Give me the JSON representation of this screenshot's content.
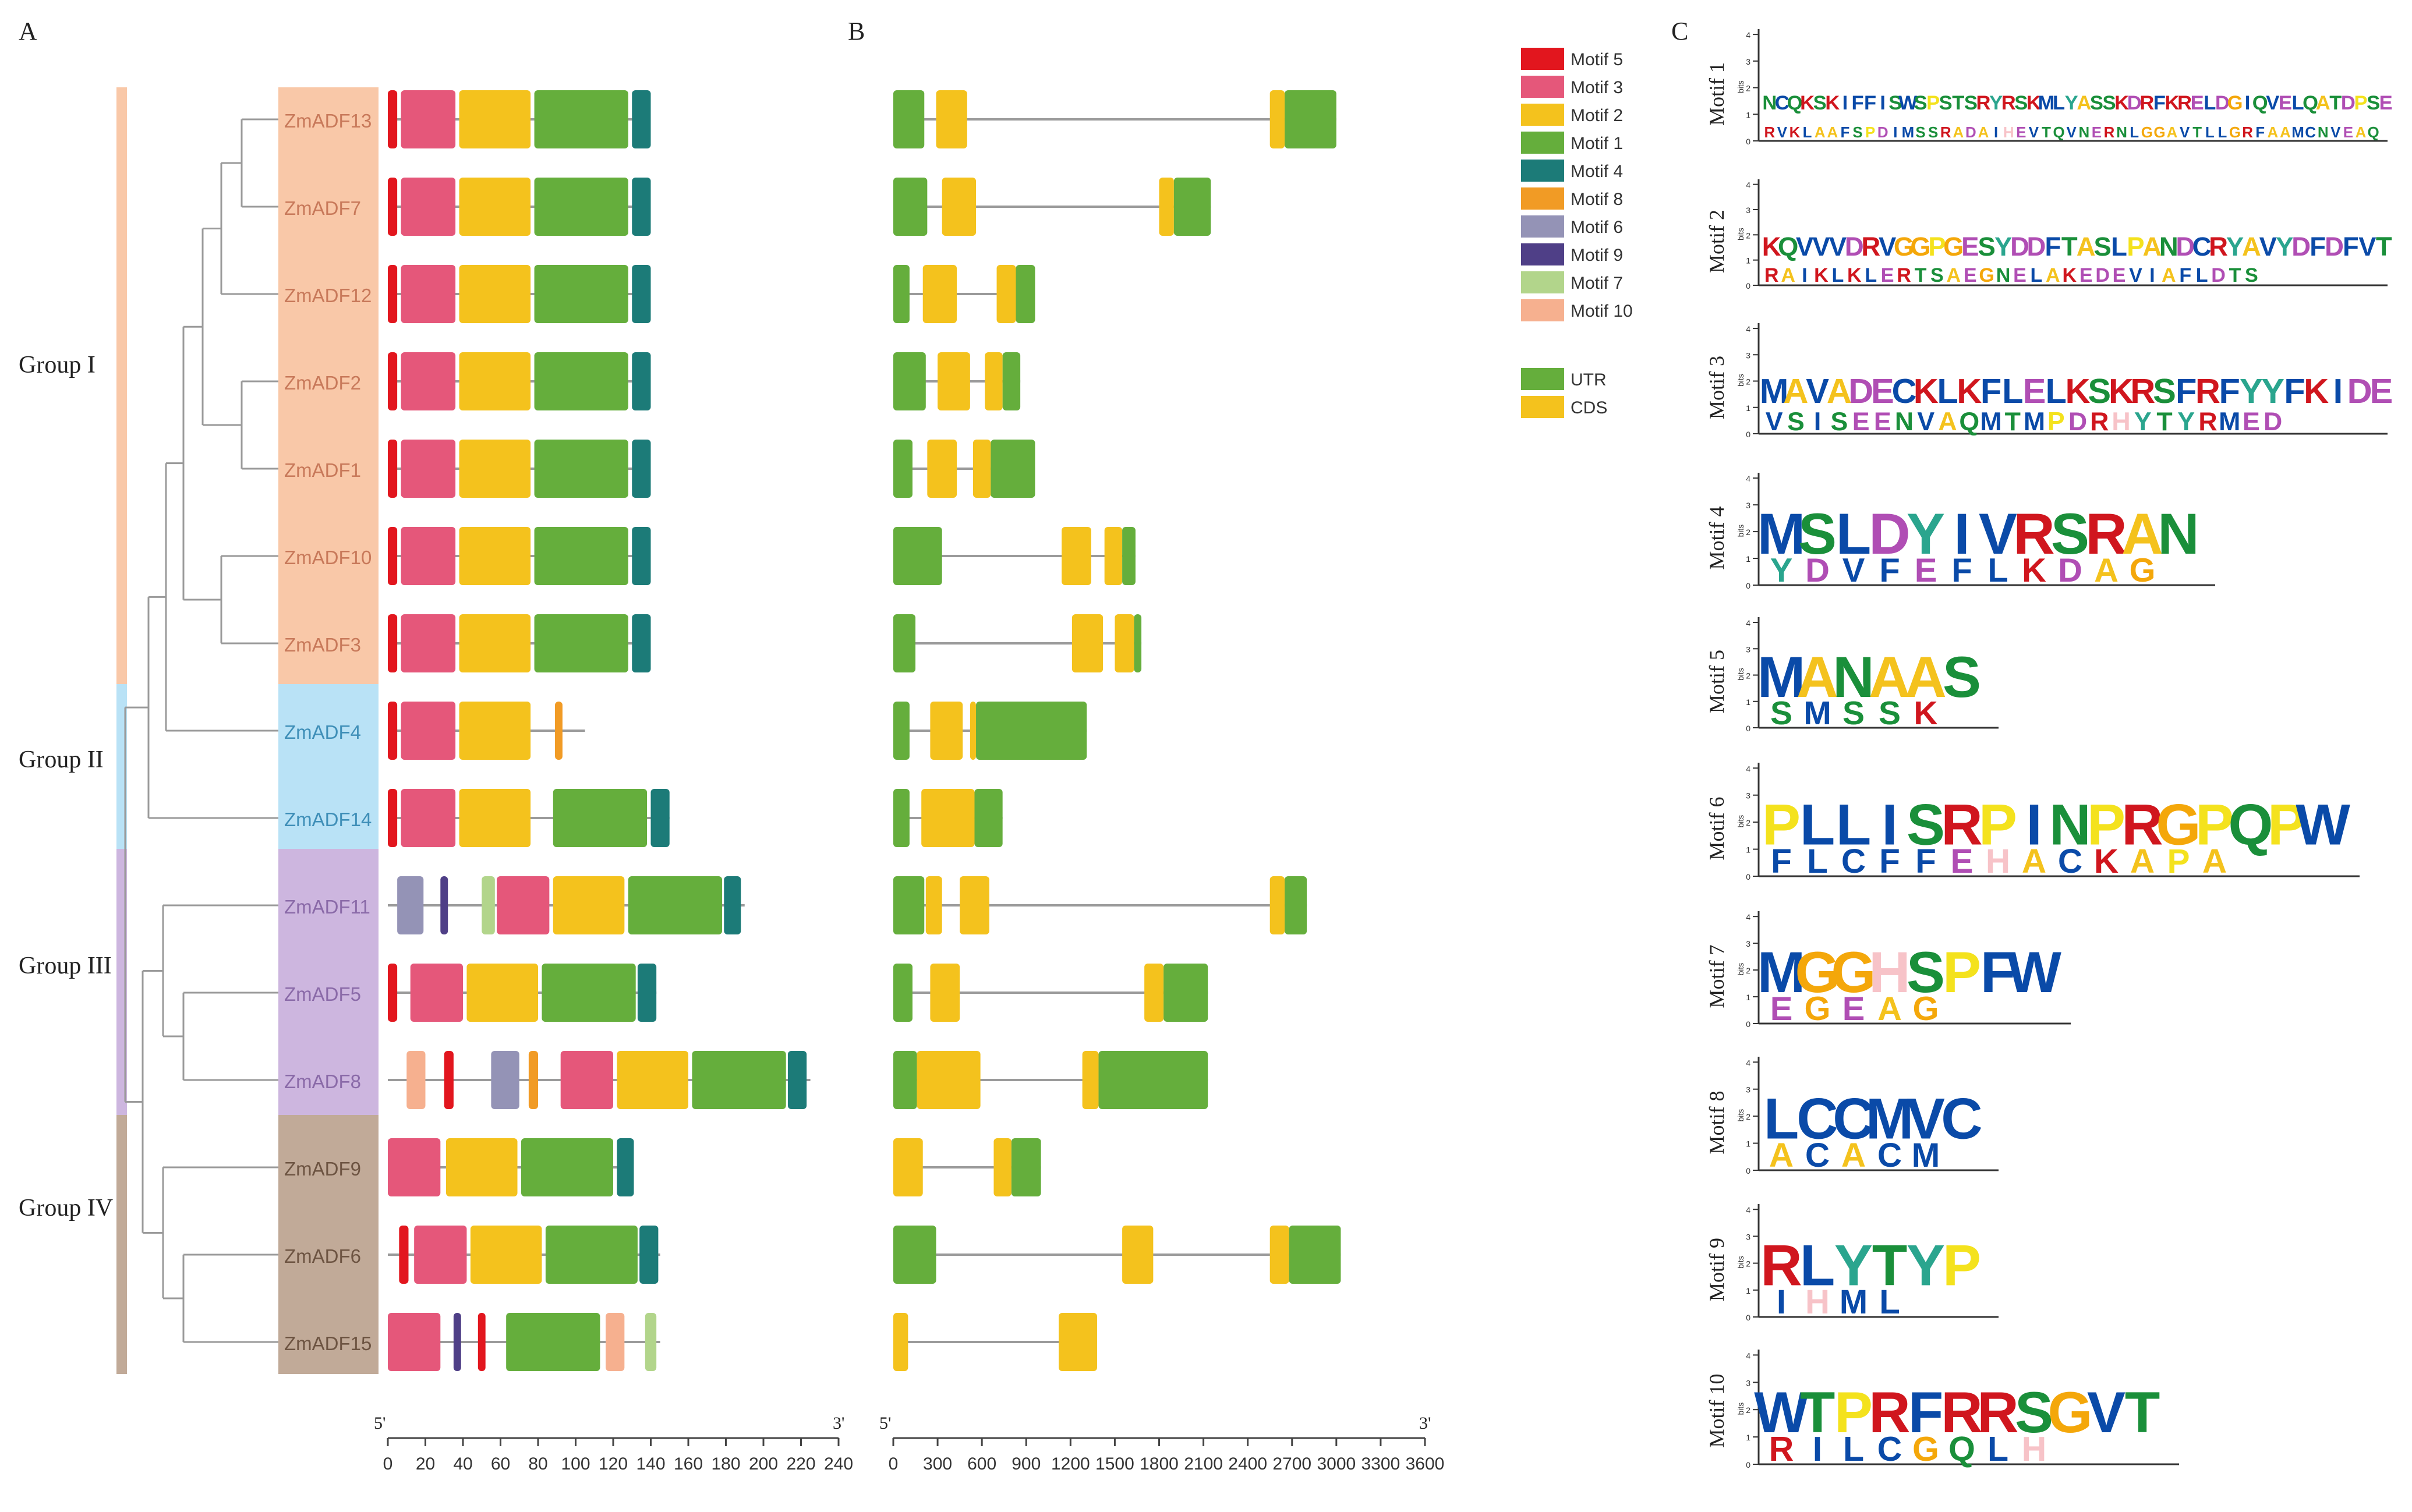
{
  "panels": {
    "a": "A",
    "b": "B",
    "c": "C"
  },
  "groups": [
    {
      "label": "Group I",
      "color": "#f9c8a8"
    },
    {
      "label": "Group II",
      "color": "#b9e2f6"
    },
    {
      "label": "Group III",
      "color": "#cdb6df"
    },
    {
      "label": "Group IV",
      "color": "#c1aa98"
    }
  ],
  "genes": [
    {
      "name": "ZmADF13",
      "group": 0,
      "length": 140,
      "motifs": [
        [
          "m5",
          0,
          5
        ],
        [
          "m3",
          7,
          36
        ],
        [
          "m2",
          38,
          76
        ],
        [
          "m1",
          78,
          128
        ],
        [
          "m4",
          130,
          140
        ]
      ],
      "exons": [
        [
          "UTR",
          0,
          210
        ],
        [
          "CDS",
          290,
          500
        ],
        [
          "CDS",
          2550,
          2650
        ],
        [
          "UTR",
          2650,
          3000
        ]
      ],
      "gene_len": 3000
    },
    {
      "name": "ZmADF7",
      "group": 0,
      "length": 140,
      "motifs": [
        [
          "m5",
          0,
          5
        ],
        [
          "m3",
          7,
          36
        ],
        [
          "m2",
          38,
          76
        ],
        [
          "m1",
          78,
          128
        ],
        [
          "m4",
          130,
          140
        ]
      ],
      "exons": [
        [
          "UTR",
          0,
          230
        ],
        [
          "CDS",
          330,
          560
        ],
        [
          "CDS",
          1800,
          1900
        ],
        [
          "UTR",
          1900,
          2150
        ]
      ],
      "gene_len": 2150
    },
    {
      "name": "ZmADF12",
      "group": 0,
      "length": 140,
      "motifs": [
        [
          "m5",
          0,
          5
        ],
        [
          "m3",
          7,
          36
        ],
        [
          "m2",
          38,
          76
        ],
        [
          "m1",
          78,
          128
        ],
        [
          "m4",
          130,
          140
        ]
      ],
      "exons": [
        [
          "UTR",
          0,
          110
        ],
        [
          "CDS",
          200,
          430
        ],
        [
          "CDS",
          700,
          830
        ],
        [
          "UTR",
          830,
          960
        ]
      ],
      "gene_len": 960
    },
    {
      "name": "ZmADF2",
      "group": 0,
      "length": 140,
      "motifs": [
        [
          "m5",
          0,
          5
        ],
        [
          "m3",
          7,
          36
        ],
        [
          "m2",
          38,
          76
        ],
        [
          "m1",
          78,
          128
        ],
        [
          "m4",
          130,
          140
        ]
      ],
      "exons": [
        [
          "UTR",
          0,
          220
        ],
        [
          "CDS",
          300,
          520
        ],
        [
          "CDS",
          620,
          740
        ],
        [
          "UTR",
          740,
          860
        ]
      ],
      "gene_len": 860
    },
    {
      "name": "ZmADF1",
      "group": 0,
      "length": 140,
      "motifs": [
        [
          "m5",
          0,
          5
        ],
        [
          "m3",
          7,
          36
        ],
        [
          "m2",
          38,
          76
        ],
        [
          "m1",
          78,
          128
        ],
        [
          "m4",
          130,
          140
        ]
      ],
      "exons": [
        [
          "UTR",
          0,
          130
        ],
        [
          "CDS",
          230,
          430
        ],
        [
          "CDS",
          540,
          660
        ],
        [
          "UTR",
          660,
          960
        ]
      ],
      "gene_len": 960
    },
    {
      "name": "ZmADF10",
      "group": 0,
      "length": 140,
      "motifs": [
        [
          "m5",
          0,
          5
        ],
        [
          "m3",
          7,
          36
        ],
        [
          "m2",
          38,
          76
        ],
        [
          "m1",
          78,
          128
        ],
        [
          "m4",
          130,
          140
        ]
      ],
      "exons": [
        [
          "UTR",
          0,
          330
        ],
        [
          "CDS",
          1140,
          1340
        ],
        [
          "CDS",
          1430,
          1550
        ],
        [
          "UTR",
          1550,
          1640
        ]
      ],
      "gene_len": 1640
    },
    {
      "name": "ZmADF3",
      "group": 0,
      "length": 140,
      "motifs": [
        [
          "m5",
          0,
          5
        ],
        [
          "m3",
          7,
          36
        ],
        [
          "m2",
          38,
          76
        ],
        [
          "m1",
          78,
          128
        ],
        [
          "m4",
          130,
          140
        ]
      ],
      "exons": [
        [
          "UTR",
          0,
          150
        ],
        [
          "CDS",
          1210,
          1420
        ],
        [
          "CDS",
          1500,
          1630
        ],
        [
          "UTR",
          1630,
          1680
        ]
      ],
      "gene_len": 1680
    },
    {
      "name": "ZmADF4",
      "group": 1,
      "length": 105,
      "motifs": [
        [
          "m5",
          0,
          5
        ],
        [
          "m3",
          7,
          36
        ],
        [
          "m2",
          38,
          76
        ],
        [
          "m8",
          89,
          93
        ]
      ],
      "exons": [
        [
          "UTR",
          0,
          110
        ],
        [
          "CDS",
          250,
          470
        ],
        [
          "CDS",
          520,
          560
        ],
        [
          "UTR",
          560,
          1310
        ]
      ],
      "gene_len": 1310
    },
    {
      "name": "ZmADF14",
      "group": 1,
      "length": 150,
      "motifs": [
        [
          "m5",
          0,
          5
        ],
        [
          "m3",
          7,
          36
        ],
        [
          "m2",
          38,
          76
        ],
        [
          "m1",
          88,
          138
        ],
        [
          "m4",
          140,
          150
        ]
      ],
      "exons": [
        [
          "UTR",
          0,
          110
        ],
        [
          "CDS",
          190,
          550
        ],
        [
          "UTR",
          550,
          740
        ]
      ],
      "gene_len": 740
    },
    {
      "name": "ZmADF11",
      "group": 2,
      "length": 190,
      "motifs": [
        [
          "m6",
          5,
          19
        ],
        [
          "m9",
          28,
          32
        ],
        [
          "m7",
          50,
          57
        ],
        [
          "m3",
          58,
          86
        ],
        [
          "m2",
          88,
          126
        ],
        [
          "m1",
          128,
          178
        ],
        [
          "m4",
          179,
          188
        ]
      ],
      "exons": [
        [
          "UTR",
          0,
          210
        ],
        [
          "CDS",
          220,
          330
        ],
        [
          "CDS",
          450,
          650
        ],
        [
          "CDS",
          2550,
          2650
        ],
        [
          "UTR",
          2650,
          2800
        ]
      ],
      "gene_len": 2800
    },
    {
      "name": "ZmADF5",
      "group": 2,
      "length": 143,
      "motifs": [
        [
          "m5",
          0,
          5
        ],
        [
          "m3",
          12,
          40
        ],
        [
          "m2",
          42,
          80
        ],
        [
          "m1",
          82,
          132
        ],
        [
          "m4",
          133,
          143
        ]
      ],
      "exons": [
        [
          "UTR",
          0,
          130
        ],
        [
          "CDS",
          250,
          450
        ],
        [
          "CDS",
          1700,
          1830
        ],
        [
          "UTR",
          1830,
          2130
        ]
      ],
      "gene_len": 2130
    },
    {
      "name": "ZmADF8",
      "group": 2,
      "length": 225,
      "motifs": [
        [
          "m10",
          10,
          20
        ],
        [
          "m5",
          30,
          35
        ],
        [
          "m6",
          55,
          70
        ],
        [
          "m8",
          75,
          80
        ],
        [
          "m3",
          92,
          120
        ],
        [
          "m2",
          122,
          160
        ],
        [
          "m1",
          162,
          212
        ],
        [
          "m4",
          213,
          223
        ]
      ],
      "exons": [
        [
          "UTR",
          0,
          160
        ],
        [
          "CDS",
          160,
          590
        ],
        [
          "CDS",
          1280,
          1390
        ],
        [
          "UTR",
          1390,
          2130
        ]
      ],
      "gene_len": 2130
    },
    {
      "name": "ZmADF9",
      "group": 3,
      "length": 130,
      "motifs": [
        [
          "m3",
          0,
          28
        ],
        [
          "m2",
          31,
          69
        ],
        [
          "m1",
          71,
          120
        ],
        [
          "m4",
          122,
          131
        ]
      ],
      "exons": [
        [
          "CDS",
          0,
          200
        ],
        [
          "CDS",
          680,
          800
        ],
        [
          "UTR",
          800,
          1000
        ]
      ],
      "gene_len": 1000
    },
    {
      "name": "ZmADF6",
      "group": 3,
      "length": 145,
      "motifs": [
        [
          "m5",
          6,
          11
        ],
        [
          "m3",
          14,
          42
        ],
        [
          "m2",
          44,
          82
        ],
        [
          "m1",
          84,
          133
        ],
        [
          "m4",
          134,
          144
        ]
      ],
      "exons": [
        [
          "UTR",
          0,
          290
        ],
        [
          "CDS",
          1550,
          1760
        ],
        [
          "CDS",
          2550,
          2680
        ],
        [
          "UTR",
          2680,
          3030
        ]
      ],
      "gene_len": 3030
    },
    {
      "name": "ZmADF15",
      "group": 3,
      "length": 145,
      "motifs": [
        [
          "m3",
          0,
          28
        ],
        [
          "m9",
          35,
          39
        ],
        [
          "m5",
          48,
          52
        ],
        [
          "m1",
          63,
          113
        ],
        [
          "m10",
          116,
          126
        ],
        [
          "m7",
          137,
          143
        ]
      ],
      "exons": [
        [
          "CDS",
          0,
          100
        ],
        [
          "CDS",
          1120,
          1380
        ]
      ],
      "gene_len": 1380
    }
  ],
  "legend": {
    "motifs": [
      {
        "key": "m5",
        "label": "Motif 5",
        "color": "#e2161e"
      },
      {
        "key": "m3",
        "label": "Motif 3",
        "color": "#e5577a"
      },
      {
        "key": "m2",
        "label": "Motif 2",
        "color": "#f4c21d"
      },
      {
        "key": "m1",
        "label": "Motif 1",
        "color": "#65ae3c"
      },
      {
        "key": "m4",
        "label": "Motif 4",
        "color": "#1c7b78"
      },
      {
        "key": "m8",
        "label": "Motif 8",
        "color": "#f19b25"
      },
      {
        "key": "m6",
        "label": "Motif 6",
        "color": "#9493b6"
      },
      {
        "key": "m9",
        "label": "Motif 9",
        "color": "#4f3f87"
      },
      {
        "key": "m7",
        "label": "Motif 7",
        "color": "#b2d58b"
      },
      {
        "key": "m10",
        "label": "Motif 10",
        "color": "#f6b08f"
      }
    ],
    "structure": [
      {
        "key": "UTR",
        "label": "UTR",
        "color": "#65ae3c"
      },
      {
        "key": "CDS",
        "label": "CDS",
        "color": "#f4c21d"
      }
    ]
  },
  "axis_a": {
    "start": "5'",
    "end": "3'",
    "ticks": [
      "0",
      "20",
      "40",
      "60",
      "80",
      "100",
      "120",
      "140",
      "160",
      "180",
      "200",
      "220",
      "240"
    ],
    "max": 240
  },
  "axis_b": {
    "start": "5'",
    "end": "3'",
    "ticks": [
      "0",
      "300",
      "600",
      "900",
      "1200",
      "1500",
      "1800",
      "2100",
      "2400",
      "2700",
      "3000",
      "3300",
      "3600"
    ],
    "max": 3600
  },
  "motif_logos": {
    "bits_label": "bits",
    "items": [
      {
        "label": "Motif 1",
        "seq": "NCQKSKIFFISWSPSTSRYRSKMLYASSKDRFKRELDGIQVELQATDPSE",
        "sub": "RVKLAAFSPDIMSSRADAIHEVTQVNERNLGGAVTLLGRFAAMCNVEAQ"
      },
      {
        "label": "Motif 2",
        "seq": "KQVVVDRVGGPGESYDDFTASLPANDCRYAVYDFDFVT",
        "sub": "RAIKLKLERTSAEGNELAKEDEVIAFLDTS"
      },
      {
        "label": "Motif 3",
        "seq": "MAVADECKLKFLELKSKRSFRFYYFKIDE",
        "sub": "VSISEENVAQMTMPDRHYTYRMED"
      },
      {
        "label": "Motif 4",
        "seq": "MSLDYIVRSRAN",
        "sub": "YDVFEFLKDAG"
      },
      {
        "label": "Motif 5",
        "seq": "MANAAS",
        "sub": "SMSSK"
      },
      {
        "label": "Motif 6",
        "seq": "PLLISRPINPRGPQPW",
        "sub": "FLCFFEHACKAPA"
      },
      {
        "label": "Motif 7",
        "seq": "MGGHSPFW",
        "sub": "EGEAG"
      },
      {
        "label": "Motif 8",
        "seq": "LCCMVC",
        "sub": "ACACM"
      },
      {
        "label": "Motif 9",
        "seq": "RLYTYP",
        "sub": "IHML"
      },
      {
        "label": "Motif 10",
        "seq": "WTPRFRRSGVT",
        "sub": "RILCGQLH"
      }
    ]
  }
}
